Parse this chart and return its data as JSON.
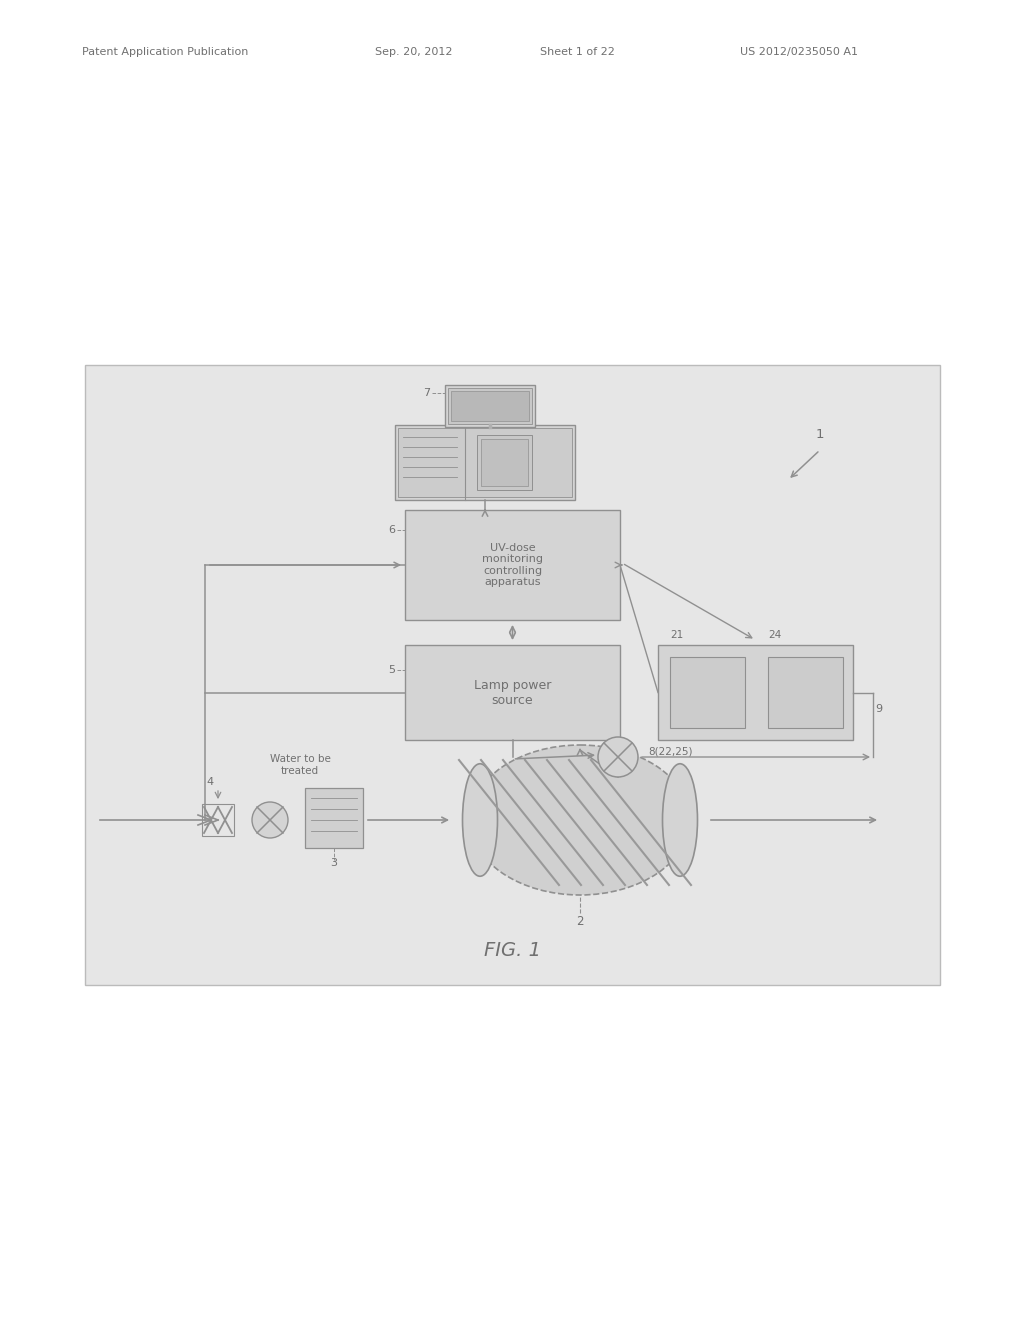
{
  "outer_bg": "#ffffff",
  "diagram_bg": "#e6e6e6",
  "line_color": "#909090",
  "text_color": "#707070",
  "box_fill": "#d8d8d8",
  "box_fill2": "#cccccc",
  "header_left": "Patent Application Publication",
  "header_date": "Sep. 20, 2012",
  "header_sheet": "Sheet 1 of 22",
  "header_patent": "US 2012/0235050 A1",
  "fig_label": "FIG. 1",
  "uv_text": "UV-dose\nmonitoring\ncontrolling\napparatus",
  "lamp_text": "Lamp power\nsource",
  "water_label": "Water to be\ntreated",
  "sensor_label": "8(22,25)"
}
